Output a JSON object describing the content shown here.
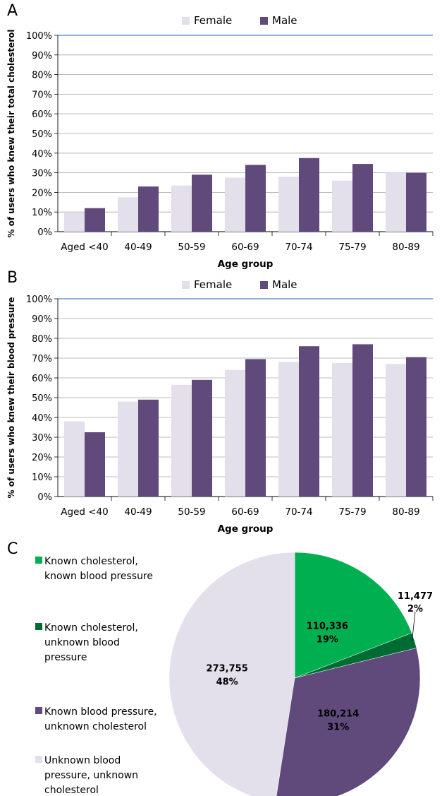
{
  "panels": [
    {
      "letter": "A",
      "chart_data": {
        "type": "bar",
        "ylabel": "% of users who knew their  total cholesterol",
        "xlabel": "Age group",
        "categories": [
          "Aged <40",
          "40-49",
          "50-59",
          "60-69",
          "70-74",
          "75-79",
          "80-89"
        ],
        "series": [
          {
            "name": "Female",
            "color": "#e3dfeb",
            "values": [
              10,
              17.5,
              23.5,
              27.5,
              28,
              26,
              30
            ]
          },
          {
            "name": "Male",
            "color": "#604a7b",
            "values": [
              12,
              23,
              29,
              34,
              37.5,
              34.5,
              30
            ]
          }
        ],
        "ylim": [
          0,
          100
        ],
        "yticks": [
          "0%",
          "10%",
          "20%",
          "30%",
          "40%",
          "50%",
          "60%",
          "70%",
          "80%",
          "90%",
          "100%"
        ],
        "legend": "top-center",
        "grid": true
      }
    },
    {
      "letter": "B",
      "chart_data": {
        "type": "bar",
        "ylabel": "% of users who knew their blood pressure",
        "xlabel": "Age group",
        "categories": [
          "Aged <40",
          "40-49",
          "50-59",
          "60-69",
          "70-74",
          "75-79",
          "80-89"
        ],
        "series": [
          {
            "name": "Female",
            "color": "#e3dfeb",
            "values": [
              38,
              48,
              56.5,
              64,
              68,
              67.5,
              67
            ]
          },
          {
            "name": "Male",
            "color": "#604a7b",
            "values": [
              32.5,
              49,
              59,
              69.5,
              76,
              77,
              70.5
            ]
          }
        ],
        "ylim": [
          0,
          100
        ],
        "yticks": [
          "0%",
          "10%",
          "20%",
          "30%",
          "40%",
          "50%",
          "60%",
          "70%",
          "80%",
          "90%",
          "100%"
        ],
        "legend": "top-center",
        "grid": true
      }
    },
    {
      "letter": "C",
      "chart_data": {
        "type": "pie",
        "slices": [
          {
            "label": "Known cholesterol, known blood pressure",
            "value": 110336,
            "value_label": "110,336",
            "pct_label": "19%",
            "color": "#00b050"
          },
          {
            "label": "Known cholesterol, unknown blood pressure",
            "value": 11477,
            "value_label": "11,477",
            "pct_label": "2%",
            "color": "#006b33"
          },
          {
            "label": "Known blood pressure, unknown cholesterol",
            "value": 180214,
            "value_label": "180,214",
            "pct_label": "31%",
            "color": "#604a7b"
          },
          {
            "label": "Unknown blood pressure, unknown cholesterol",
            "value": 273755,
            "value_label": "273,755",
            "pct_label": "48%",
            "color": "#e3dfeb"
          }
        ],
        "legend_lines": [
          [
            "Known cholesterol,",
            "known blood pressure"
          ],
          [
            "Known cholesterol,",
            "unknown blood",
            "pressure"
          ],
          [
            "Known blood pressure,",
            "unknown cholesterol"
          ],
          [
            "Unknown blood",
            "pressure, unknown",
            "cholesterol"
          ]
        ],
        "legend": "left"
      }
    }
  ]
}
